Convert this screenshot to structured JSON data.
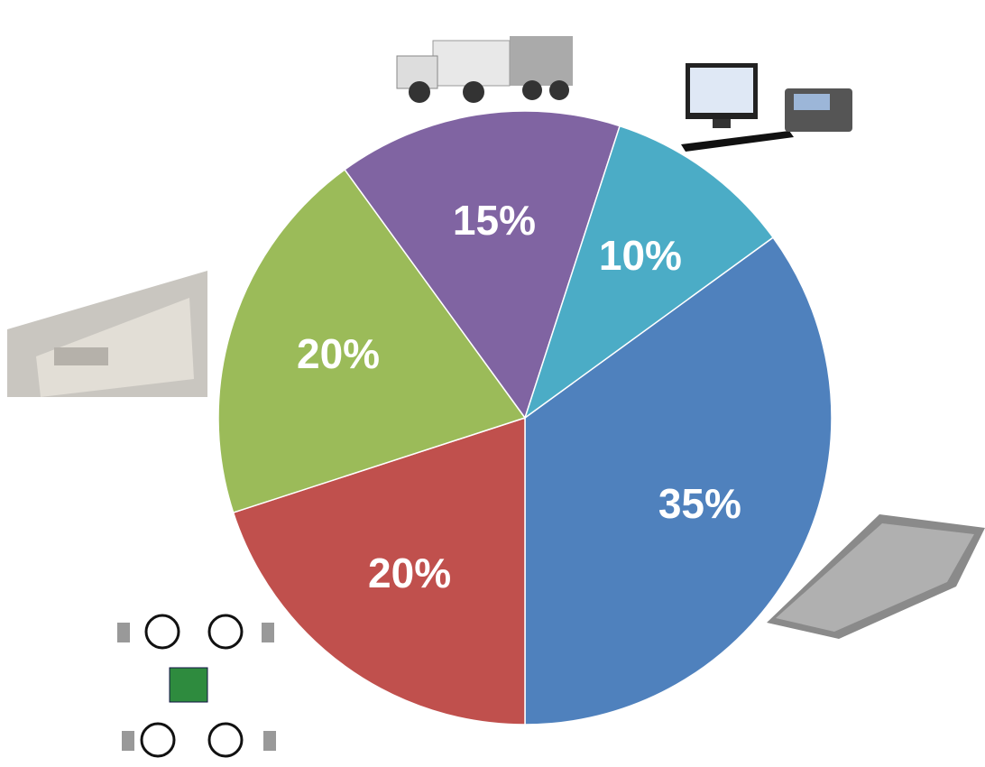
{
  "chart_data": {
    "type": "pie",
    "values": [
      35,
      20,
      20,
      15,
      10
    ],
    "value_labels": [
      "35%",
      "20%",
      "20%",
      "15%",
      "10%"
    ],
    "colors": [
      "#4f81bd",
      "#c0504d",
      "#9bbb59",
      "#8064a2",
      "#4bacc6"
    ]
  }
}
